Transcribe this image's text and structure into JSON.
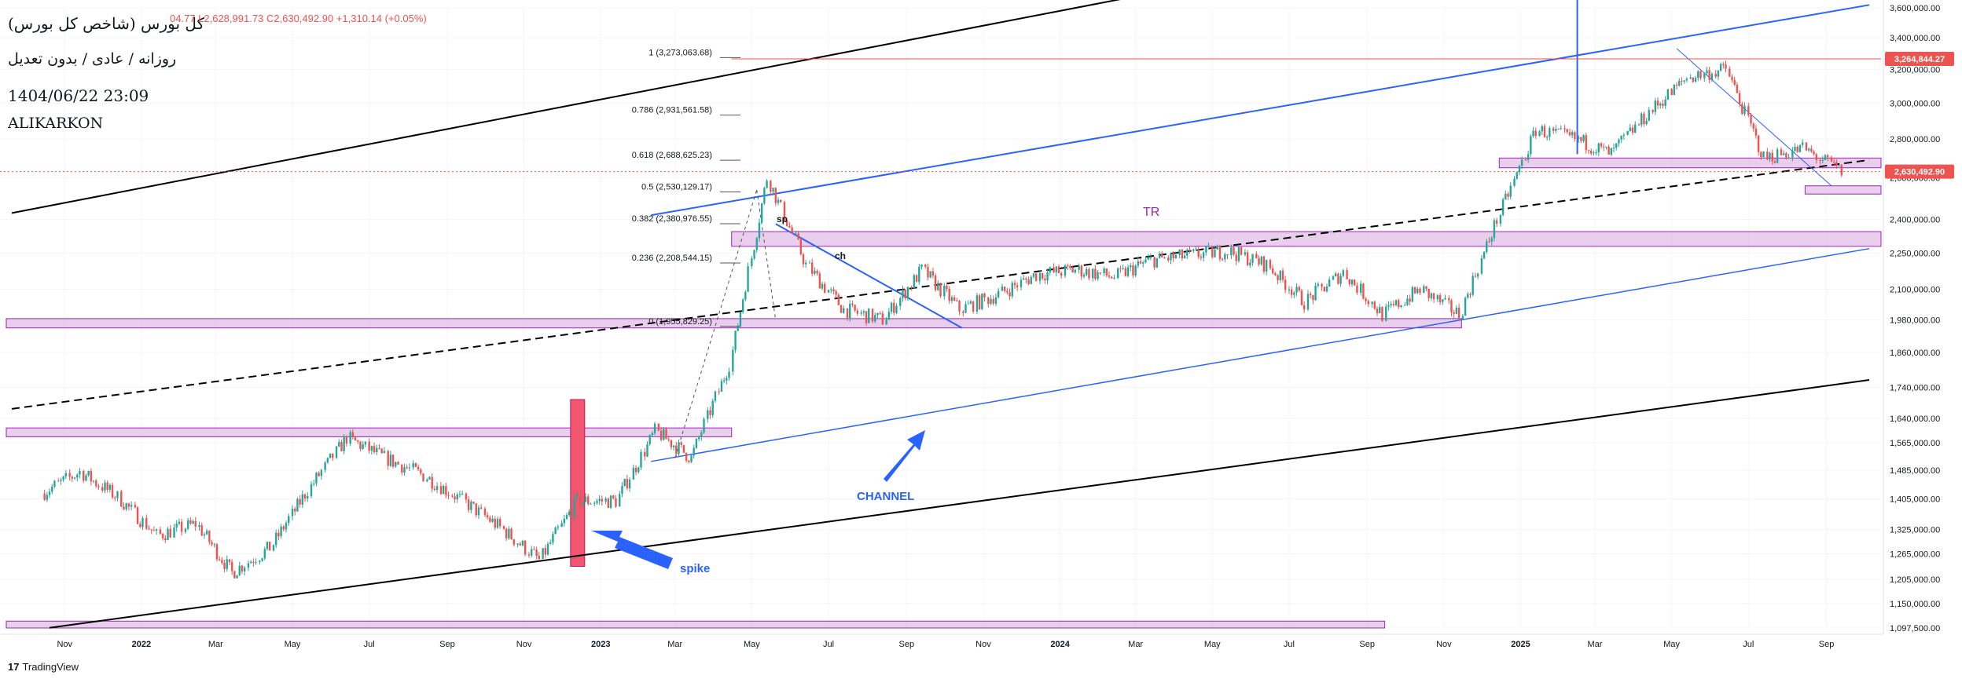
{
  "header": {
    "title": "کل بورس (شاخص کل بورس)",
    "ohlc_text": "04.77  L2,628,991.73  C2,630,492.90  +1,310.14 (+0.05%)",
    "subtitle": "روزانه / عادی / بدون تعدیل",
    "date": "1404/06/22 23:09",
    "author": "ALIKARKON"
  },
  "footer": {
    "brand_mark": "17",
    "brand": "TradingView"
  },
  "annotations": {
    "spike": "spike",
    "channel": "CHANNEL",
    "tr": "TR",
    "sp": "sp",
    "ch": "ch"
  },
  "colors": {
    "up": "#26a69a",
    "down": "#ef5350",
    "channel": "#2962ff",
    "zone_fill": "#e1bee7",
    "zone_border": "#9c27b0",
    "black_line": "#000000",
    "price_tag": "#ef5350"
  },
  "chart_data": {
    "type": "line",
    "title": "کل بورس (شاخص کل بورس)",
    "y_scale": "log",
    "ylim": [
      1097500,
      3600000
    ],
    "y_ticks": [
      3600000,
      3400000,
      3200000,
      3000000,
      2800000,
      2600000,
      2400000,
      2250000,
      2100000,
      1980000,
      1860000,
      1740000,
      1640000,
      1565000,
      1485000,
      1405000,
      1325000,
      1265000,
      1205000,
      1150000,
      1097500
    ],
    "y_tick_labels": [
      "3,600,000.00",
      "3,400,000.00",
      "3,200,000.00",
      "3,000,000.00",
      "2,800,000.00",
      "2,600,000.00",
      "2,400,000.00",
      "2,250,000.00",
      "2,100,000.00",
      "1,980,000.00",
      "1,860,000.00",
      "1,740,000.00",
      "1,640,000.00",
      "1,565,000.00",
      "1,485,000.00",
      "1,405,000.00",
      "1,325,000.00",
      "1,265,000.00",
      "1,205,000.00",
      "1,150,000.00",
      "1,097,500.00"
    ],
    "x_ticks": [
      "Nov",
      "2022",
      "Mar",
      "May",
      "Jul",
      "Sep",
      "Nov",
      "2023",
      "Mar",
      "May",
      "Jul",
      "Sep",
      "Nov",
      "2024",
      "Mar",
      "May",
      "Jul",
      "Sep",
      "Nov",
      "2025",
      "Mar",
      "May",
      "Jul",
      "Sep"
    ],
    "series": [
      {
        "x": [
          "2021-10",
          "2021-11",
          "2021-12",
          "2022-01",
          "2022-02",
          "2022-03",
          "2022-04",
          "2022-05",
          "2022-06",
          "2022-07",
          "2022-08",
          "2022-09",
          "2022-10",
          "2022-11",
          "2022-12",
          "2023-01",
          "2023-02",
          "2023-03",
          "2023-04",
          "2023-05",
          "2023-06",
          "2023-07",
          "2023-08",
          "2023-09",
          "2023-10",
          "2023-11",
          "2023-12",
          "2024-01",
          "2024-02",
          "2024-03",
          "2024-04",
          "2024-05",
          "2024-06",
          "2024-07",
          "2024-08",
          "2024-09",
          "2024-10",
          "2024-11",
          "2024-12",
          "2025-01",
          "2025-02",
          "2025-03",
          "2025-04",
          "2025-05",
          "2025-06",
          "2025-07",
          "2025-08",
          "2025-09"
        ],
        "values": [
          1420000,
          1480000,
          1410000,
          1310000,
          1340000,
          1220000,
          1280000,
          1430000,
          1580000,
          1520000,
          1470000,
          1400000,
          1330000,
          1250000,
          1400000,
          1400000,
          1600000,
          1520000,
          1820000,
          2600000,
          2200000,
          2020000,
          1980000,
          2180000,
          2020000,
          2080000,
          2160000,
          2180000,
          2150000,
          2220000,
          2240000,
          2260000,
          2200000,
          2050000,
          2170000,
          2000000,
          2100000,
          2000000,
          2400000,
          2850000,
          2800000,
          2720000,
          2950000,
          3150000,
          3200000,
          2700000,
          2750000,
          2630493
        ]
      }
    ],
    "fibonacci": [
      {
        "level": "1",
        "price": "3,273,063.68"
      },
      {
        "level": "0.786",
        "price": "2,931,561.58"
      },
      {
        "level": "0.618",
        "price": "2,688,625.23"
      },
      {
        "level": "0.5",
        "price": "2,530,129.17"
      },
      {
        "level": "0.382",
        "price": "2,380,976.55"
      },
      {
        "level": "0.236",
        "price": "2,208,544.15"
      },
      {
        "level": "0",
        "price": "1,955,829.25"
      }
    ],
    "price_tags": [
      {
        "value": 3264844.27,
        "label": "3,264,844.27"
      },
      {
        "value": 2630492.9,
        "label": "2,630,492.90"
      }
    ],
    "zones": [
      {
        "x0": "2021-09",
        "x1": "2024-09",
        "low": 1097500,
        "high": 1112000
      },
      {
        "x0": "2021-09",
        "x1": "2023-04",
        "low": 1583000,
        "high": 1610000
      },
      {
        "x0": "2021-09",
        "x1": "2024-11",
        "low": 1950000,
        "high": 1985000
      },
      {
        "x0": "2023-04",
        "x1": "2025-10",
        "low": 2280000,
        "high": 2345000
      },
      {
        "x0": "2024-12",
        "x1": "2025-10",
        "low": 2650000,
        "high": 2700000
      },
      {
        "x0": "2025-08",
        "x1": "2025-10",
        "low": 2520000,
        "high": 2560000
      }
    ]
  }
}
